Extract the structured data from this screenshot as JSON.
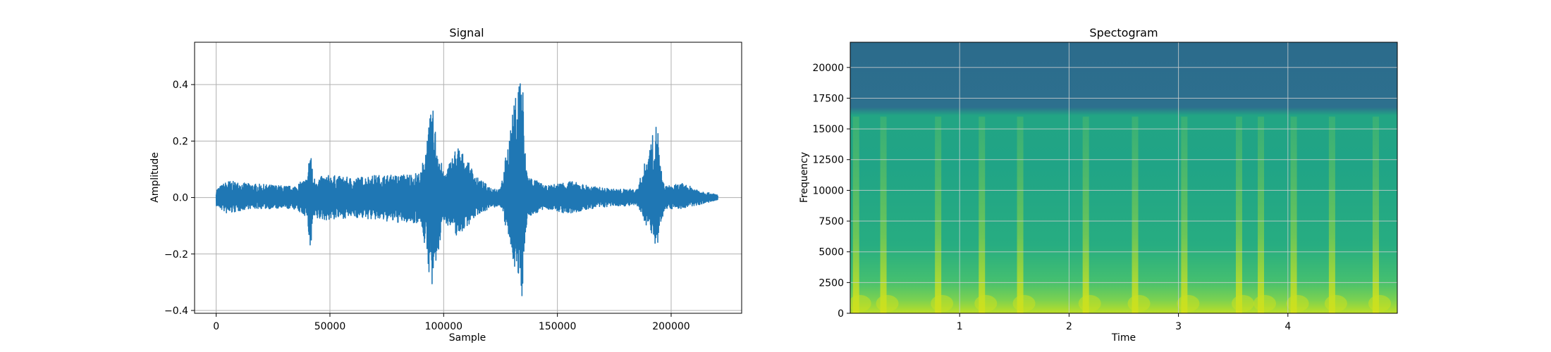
{
  "chart_data": [
    {
      "type": "line",
      "title": "Signal",
      "xlabel": "Sample",
      "ylabel": "Amplitude",
      "xlim": [
        -9500,
        231000
      ],
      "ylim": [
        -0.41,
        0.55
      ],
      "x_ticks": [
        0,
        50000,
        100000,
        150000,
        200000
      ],
      "x_tick_labels": [
        "0",
        "50000",
        "100000",
        "150000",
        "200000"
      ],
      "y_ticks": [
        -0.4,
        -0.2,
        0.0,
        0.2,
        0.4
      ],
      "y_tick_labels": [
        "−0.4",
        "−0.2",
        "0.0",
        "0.2",
        "0.4"
      ],
      "grid": true,
      "color": "#1f77b4",
      "series": [
        {
          "x": [
            0,
            5000,
            14000,
            34000,
            40000,
            41500,
            42500,
            50000,
            60000,
            70000,
            80000,
            90000,
            95000,
            96500,
            100000,
            106000,
            115000,
            120000,
            125000,
            134500,
            135500,
            137000,
            145000,
            155000,
            165000,
            175000,
            185000,
            194000,
            195000,
            197000,
            205000,
            215000,
            220500
          ],
          "upper": [
            0.03,
            0.06,
            0.05,
            0.04,
            0.07,
            0.2,
            0.07,
            0.08,
            0.07,
            0.08,
            0.08,
            0.09,
            0.33,
            0.24,
            0.08,
            0.19,
            0.07,
            0.04,
            0.03,
            0.51,
            0.19,
            0.08,
            0.04,
            0.06,
            0.04,
            0.03,
            0.03,
            0.28,
            0.13,
            0.04,
            0.05,
            0.02,
            0.01
          ],
          "lower": [
            -0.03,
            -0.06,
            -0.04,
            -0.04,
            -0.07,
            -0.22,
            -0.08,
            -0.08,
            -0.07,
            -0.08,
            -0.09,
            -0.09,
            -0.34,
            -0.26,
            -0.08,
            -0.14,
            -0.06,
            -0.04,
            -0.03,
            -0.36,
            -0.17,
            -0.07,
            -0.04,
            -0.06,
            -0.04,
            -0.03,
            -0.03,
            -0.18,
            -0.12,
            -0.04,
            -0.04,
            -0.02,
            -0.01
          ]
        }
      ]
    },
    {
      "type": "heatmap",
      "title": "Spectogram",
      "xlabel": "Time",
      "ylabel": "Frequency",
      "xlim": [
        0,
        5.0
      ],
      "ylim": [
        0,
        22050
      ],
      "x_ticks": [
        1,
        2,
        3,
        4
      ],
      "x_tick_labels": [
        "1",
        "2",
        "3",
        "4"
      ],
      "y_ticks": [
        0,
        2500,
        5000,
        7500,
        10000,
        12500,
        15000,
        17500,
        20000
      ],
      "y_tick_labels": [
        "0",
        "2500",
        "5000",
        "7500",
        "10000",
        "12500",
        "15000",
        "17500",
        "20000"
      ],
      "grid": true,
      "colormap": "viridis",
      "cutoff_frequency": 16000,
      "onsets": [
        0.05,
        0.3,
        0.8,
        1.2,
        1.55,
        2.15,
        2.6,
        3.05,
        3.55,
        3.75,
        4.05,
        4.4,
        4.8
      ]
    }
  ]
}
